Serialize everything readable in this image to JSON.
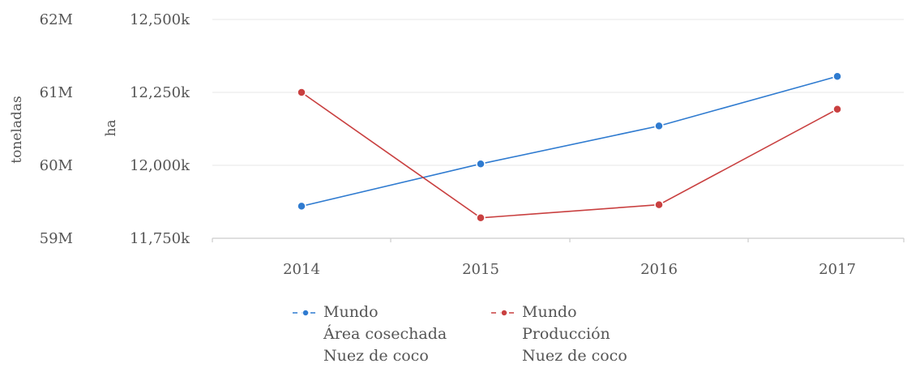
{
  "chart_data": {
    "type": "line",
    "categories": [
      "2014",
      "2015",
      "2016",
      "2017"
    ],
    "axes": {
      "left_outer": {
        "title": "toneladas",
        "ticks": [
          "59M",
          "60M",
          "61M",
          "62M"
        ],
        "tick_values": [
          59000000,
          60000000,
          61000000,
          62000000
        ],
        "range": [
          59000000,
          62000000
        ]
      },
      "left_inner": {
        "title": "ha",
        "ticks": [
          "11,750k",
          "12,000k",
          "12,250k",
          "12,500k"
        ],
        "tick_values": [
          11750000,
          12000000,
          12250000,
          12500000
        ],
        "range": [
          11750000,
          12500000
        ]
      }
    },
    "series": [
      {
        "name": "Mundo Área cosechada Nuez de coco",
        "legend_lines": [
          "Mundo",
          "Área cosechada",
          "Nuez de coco"
        ],
        "axis": "left_inner",
        "unit": "ha",
        "color": "#2f7bd0",
        "values": [
          11860000,
          12005000,
          12135000,
          12305000
        ]
      },
      {
        "name": "Mundo Producción Nuez de coco",
        "legend_lines": [
          "Mundo",
          "Producción",
          "Nuez de coco"
        ],
        "axis": "left_outer",
        "unit": "toneladas",
        "color": "#c94040",
        "values": [
          61000000,
          59280000,
          59460000,
          60770000
        ]
      }
    ],
    "grid": true,
    "legend_position": "bottom"
  }
}
